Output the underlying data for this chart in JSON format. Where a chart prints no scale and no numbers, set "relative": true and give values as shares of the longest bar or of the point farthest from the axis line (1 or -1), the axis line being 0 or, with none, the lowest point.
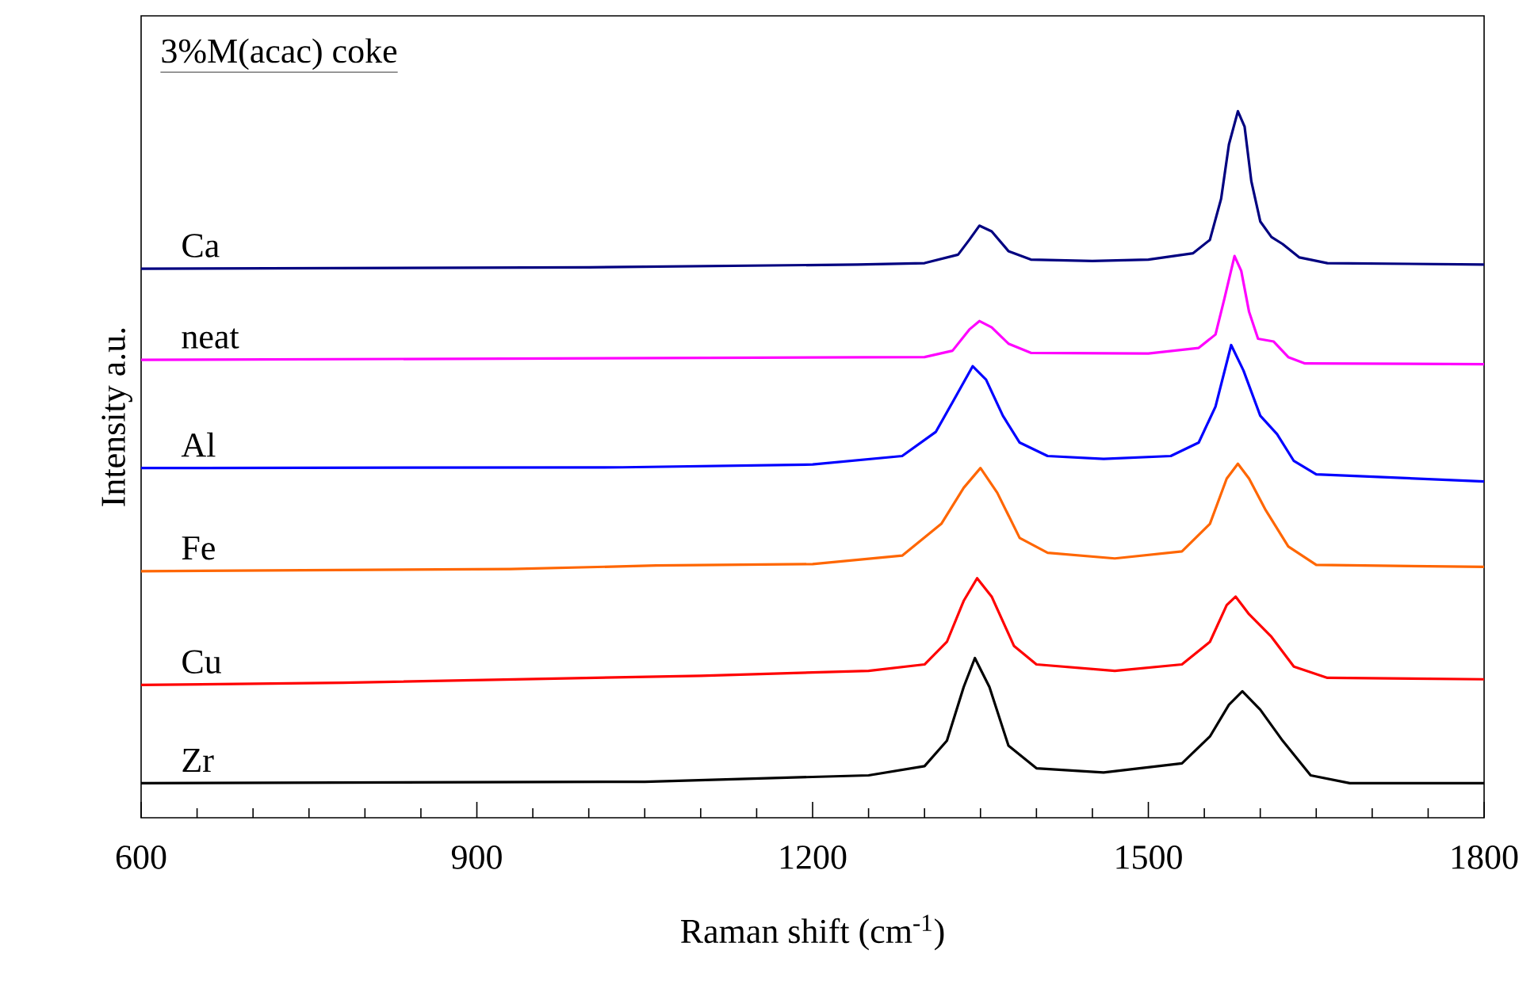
{
  "chart_data": {
    "type": "line",
    "title": "3%M(acac) coke",
    "xlabel": "Raman shift (cm$^{-1}$)",
    "ylabel": "Intensity a.u.",
    "relative": true,
    "xlim": [
      600,
      1800
    ],
    "xticks": [
      600,
      900,
      1200,
      1500,
      1800
    ],
    "legend": false,
    "grid": false,
    "marker": "none",
    "line_style": "solid",
    "series": [
      {
        "name": "Ca",
        "color": "#000080",
        "x": [
          600,
          1000,
          1240,
          1300,
          1330,
          1340,
          1349,
          1360,
          1375,
          1395,
          1450,
          1500,
          1540,
          1555,
          1565,
          1572,
          1580,
          1586,
          1592,
          1600,
          1610,
          1620,
          1635,
          1660,
          1800
        ],
        "values": [
          0.777,
          0.779,
          0.783,
          0.785,
          0.797,
          0.818,
          0.838,
          0.83,
          0.802,
          0.79,
          0.788,
          0.79,
          0.799,
          0.818,
          0.876,
          0.953,
          1.0,
          0.978,
          0.901,
          0.844,
          0.822,
          0.812,
          0.793,
          0.785,
          0.783
        ]
      },
      {
        "name": "neat",
        "color": "#ff00ff",
        "x": [
          600,
          1300,
          1325,
          1340,
          1349,
          1360,
          1375,
          1395,
          1500,
          1545,
          1560,
          1568,
          1577,
          1583,
          1590,
          1598,
          1612,
          1625,
          1640,
          1800
        ],
        "values": [
          0.648,
          0.652,
          0.661,
          0.691,
          0.703,
          0.694,
          0.671,
          0.658,
          0.657,
          0.665,
          0.684,
          0.735,
          0.795,
          0.774,
          0.716,
          0.678,
          0.674,
          0.652,
          0.643,
          0.642
        ]
      },
      {
        "name": "Al",
        "color": "#0000ff",
        "x": [
          600,
          1030,
          1200,
          1280,
          1310,
          1325,
          1343,
          1355,
          1370,
          1385,
          1410,
          1460,
          1520,
          1545,
          1560,
          1574,
          1585,
          1600,
          1615,
          1630,
          1650,
          1800
        ],
        "values": [
          0.495,
          0.496,
          0.5,
          0.512,
          0.546,
          0.588,
          0.639,
          0.62,
          0.569,
          0.531,
          0.512,
          0.508,
          0.512,
          0.531,
          0.582,
          0.669,
          0.633,
          0.569,
          0.543,
          0.505,
          0.486,
          0.476
        ]
      },
      {
        "name": "Fe",
        "color": "#ff6600",
        "x": [
          600,
          930,
          1060,
          1200,
          1280,
          1315,
          1335,
          1350,
          1365,
          1385,
          1410,
          1470,
          1530,
          1555,
          1570,
          1580,
          1590,
          1605,
          1625,
          1650,
          1800
        ],
        "values": [
          0.349,
          0.352,
          0.357,
          0.359,
          0.371,
          0.416,
          0.467,
          0.495,
          0.46,
          0.396,
          0.375,
          0.367,
          0.377,
          0.416,
          0.48,
          0.501,
          0.48,
          0.435,
          0.384,
          0.358,
          0.355
        ]
      },
      {
        "name": "Cu",
        "color": "#ff0000",
        "x": [
          600,
          780,
          1100,
          1250,
          1300,
          1320,
          1335,
          1347,
          1360,
          1380,
          1400,
          1470,
          1530,
          1555,
          1570,
          1578,
          1590,
          1610,
          1630,
          1660,
          1800
        ],
        "values": [
          0.188,
          0.191,
          0.201,
          0.208,
          0.217,
          0.249,
          0.307,
          0.339,
          0.313,
          0.243,
          0.217,
          0.208,
          0.217,
          0.249,
          0.301,
          0.313,
          0.288,
          0.256,
          0.214,
          0.198,
          0.196
        ]
      },
      {
        "name": "Zr",
        "color": "#000000",
        "x": [
          600,
          1050,
          1250,
          1300,
          1320,
          1335,
          1345,
          1358,
          1375,
          1400,
          1460,
          1530,
          1555,
          1572,
          1584,
          1600,
          1620,
          1645,
          1680,
          1800
        ],
        "values": [
          0.049,
          0.051,
          0.06,
          0.073,
          0.109,
          0.185,
          0.226,
          0.185,
          0.102,
          0.07,
          0.064,
          0.077,
          0.115,
          0.16,
          0.179,
          0.153,
          0.109,
          0.06,
          0.049,
          0.049
        ]
      }
    ]
  }
}
